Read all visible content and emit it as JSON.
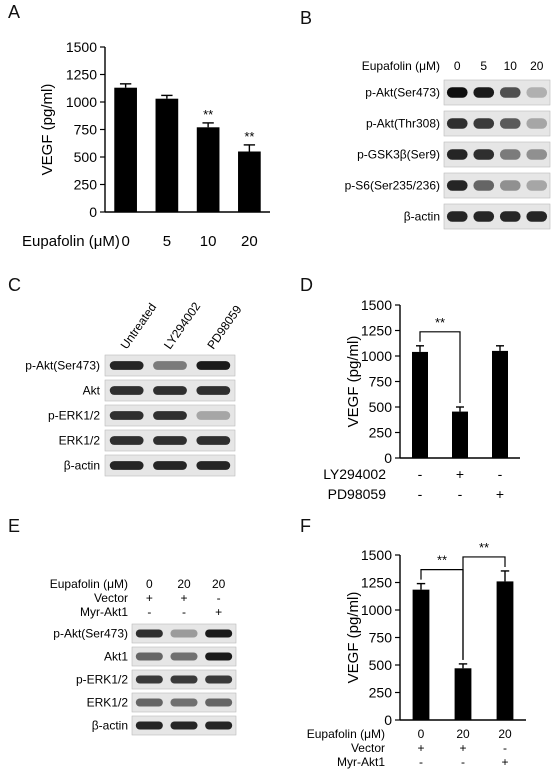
{
  "panels": {
    "A": {
      "letter": "A",
      "row_label": "Eupafolin (μM)",
      "conditions": [
        "0",
        "5",
        "10",
        "20"
      ],
      "ylabel": "VEGF (pg/ml)"
    },
    "B": {
      "letter": "B",
      "treatment_label": "Eupafolin (μM)",
      "conditions": [
        "0",
        "5",
        "10",
        "20"
      ],
      "blots": [
        "p-Akt(Ser473)",
        "p-Akt(Thr308)",
        "p-GSK3β(Ser9)",
        "p-S6(Ser235/236)",
        "β-actin"
      ]
    },
    "C": {
      "letter": "C",
      "lane_labels": [
        "Untreated",
        "LY294002",
        "PD98059"
      ],
      "blots": [
        "p-Akt(Ser473)",
        "Akt",
        "p-ERK1/2",
        "ERK1/2",
        "β-actin"
      ]
    },
    "D": {
      "letter": "D",
      "ylabel": "VEGF (pg/ml)",
      "rows": [
        {
          "label": "LY294002",
          "signs": [
            "-",
            "+",
            "-"
          ]
        },
        {
          "label": "PD98059",
          "signs": [
            "-",
            "-",
            "+"
          ]
        }
      ]
    },
    "E": {
      "letter": "E",
      "treatment_rows": [
        {
          "label": "Eupafolin (μM)",
          "values": [
            "0",
            "20",
            "20"
          ]
        },
        {
          "label": "Vector",
          "values": [
            "+",
            "+",
            "-"
          ]
        },
        {
          "label": "Myr-Akt1",
          "values": [
            "-",
            "-",
            "+"
          ]
        }
      ],
      "blots": [
        "p-Akt(Ser473)",
        "Akt1",
        "p-ERK1/2",
        "ERK1/2",
        "β-actin"
      ]
    },
    "F": {
      "letter": "F",
      "ylabel": "VEGF (pg/ml)",
      "rows": [
        {
          "label": "Eupafolin (μM)",
          "values": [
            "0",
            "20",
            "20"
          ]
        },
        {
          "label": "Vector",
          "values": [
            "+",
            "+",
            "-"
          ]
        },
        {
          "label": "Myr-Akt1",
          "values": [
            "-",
            "-",
            "+"
          ]
        }
      ]
    }
  },
  "chart_data": [
    {
      "panel": "A",
      "type": "bar",
      "categories": [
        "0",
        "5",
        "10",
        "20"
      ],
      "values": [
        1130,
        1030,
        770,
        550
      ],
      "errors": [
        35,
        30,
        40,
        60
      ],
      "ylim": [
        0,
        1500
      ],
      "yticks": [
        0,
        250,
        500,
        750,
        1000,
        1250,
        1500
      ],
      "xlabel": "Eupafolin (μM)",
      "ylabel": "VEGF (pg/ml)",
      "annotations": [
        "",
        "",
        "**",
        "**"
      ]
    },
    {
      "panel": "D",
      "type": "bar",
      "categories": [
        "-/-",
        "+/-",
        "-/+"
      ],
      "values": [
        1040,
        455,
        1050
      ],
      "errors": [
        60,
        45,
        50
      ],
      "ylim": [
        0,
        1500
      ],
      "yticks": [
        0,
        250,
        500,
        750,
        1000,
        1250,
        1500
      ],
      "ylabel": "VEGF (pg/ml)",
      "significance": [
        {
          "from": 0,
          "to": 1,
          "label": "**"
        }
      ]
    },
    {
      "panel": "F",
      "type": "bar",
      "categories": [
        "0/+/-",
        "20/+/-",
        "20/-/+"
      ],
      "values": [
        1185,
        470,
        1260
      ],
      "errors": [
        55,
        40,
        95
      ],
      "ylim": [
        0,
        1500
      ],
      "yticks": [
        0,
        250,
        500,
        750,
        1000,
        1250,
        1500
      ],
      "ylabel": "VEGF (pg/ml)",
      "significance": [
        {
          "from": 0,
          "to": 1,
          "label": "**"
        },
        {
          "from": 1,
          "to": 2,
          "label": "**"
        }
      ]
    }
  ],
  "blot_intensities": {
    "B": [
      [
        1.0,
        0.95,
        0.7,
        0.25
      ],
      [
        0.85,
        0.8,
        0.65,
        0.3
      ],
      [
        0.9,
        0.85,
        0.5,
        0.4
      ],
      [
        0.9,
        0.6,
        0.4,
        0.3
      ],
      [
        0.9,
        0.9,
        0.9,
        0.9
      ]
    ],
    "C": [
      [
        0.9,
        0.5,
        0.95
      ],
      [
        0.85,
        0.85,
        0.85
      ],
      [
        0.85,
        0.85,
        0.3
      ],
      [
        0.85,
        0.85,
        0.85
      ],
      [
        0.9,
        0.9,
        0.9
      ]
    ],
    "E": [
      [
        0.85,
        0.35,
        0.95
      ],
      [
        0.6,
        0.55,
        0.95
      ],
      [
        0.8,
        0.8,
        0.8
      ],
      [
        0.6,
        0.55,
        0.6
      ],
      [
        0.9,
        0.9,
        0.9
      ]
    ]
  }
}
